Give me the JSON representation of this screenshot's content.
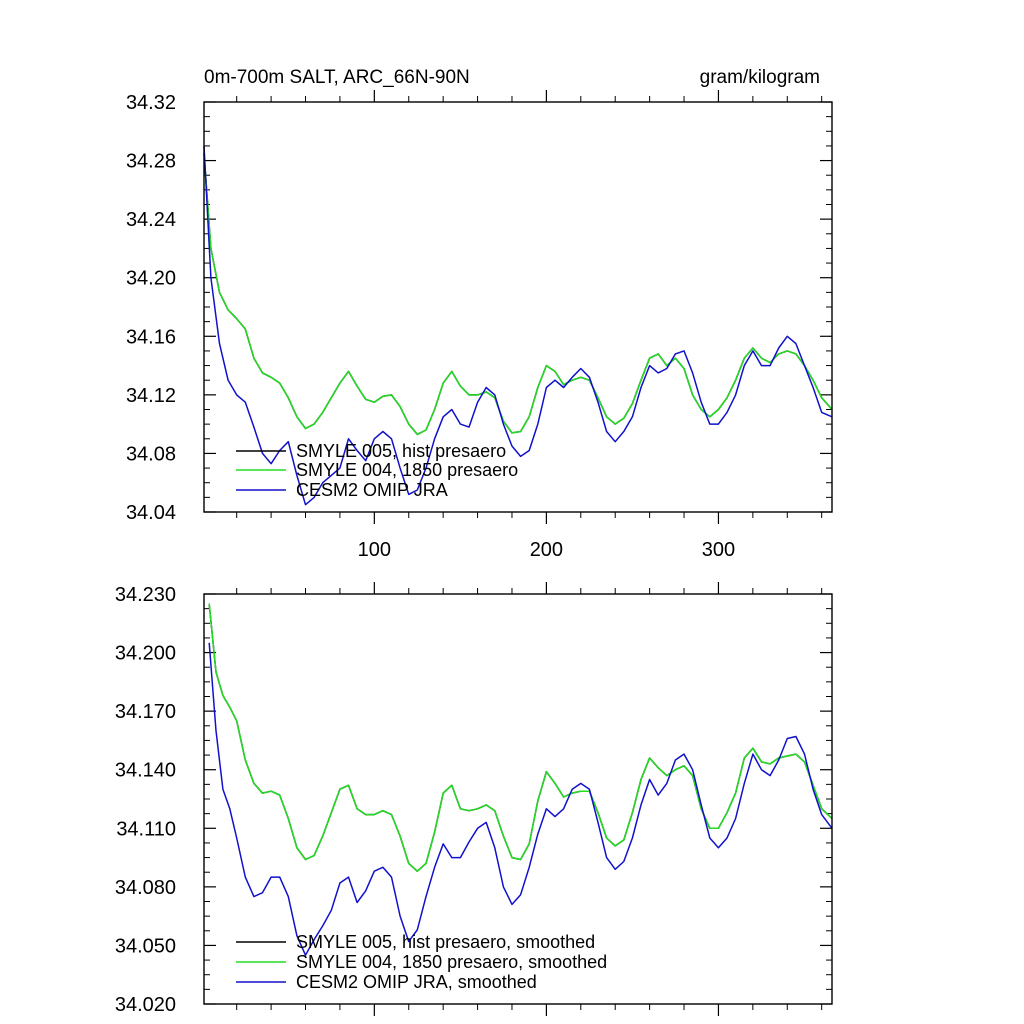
{
  "chart_data": [
    {
      "type": "line",
      "title": "0m-700m SALT, ARC_66N-90N",
      "units": "gram/kilogram",
      "xlim": [
        1,
        366
      ],
      "ylim": [
        34.04,
        34.32
      ],
      "xticks": [
        100,
        200,
        300
      ],
      "yticks": [
        34.04,
        34.08,
        34.12,
        34.16,
        34.2,
        34.24,
        34.28,
        34.32
      ],
      "ytick_labels": [
        "34.04",
        "34.08",
        "34.12",
        "34.16",
        "34.20",
        "34.24",
        "34.28",
        "34.32"
      ],
      "grid": false,
      "legend_position": "bottom-left",
      "x": [
        1,
        5,
        10,
        15,
        20,
        25,
        30,
        35,
        40,
        45,
        50,
        55,
        60,
        65,
        70,
        75,
        80,
        85,
        90,
        95,
        100,
        105,
        110,
        115,
        120,
        125,
        130,
        135,
        140,
        145,
        150,
        155,
        160,
        165,
        170,
        175,
        180,
        185,
        190,
        195,
        200,
        205,
        210,
        215,
        220,
        225,
        230,
        235,
        240,
        245,
        250,
        255,
        260,
        265,
        270,
        275,
        280,
        285,
        290,
        295,
        300,
        305,
        310,
        315,
        320,
        325,
        330,
        335,
        340,
        345,
        350,
        355,
        360,
        366
      ],
      "series": [
        {
          "name": "SMYLE 005, hist presaero",
          "color": "#000000",
          "values": [
            34.285,
            34.22,
            34.19,
            34.178,
            34.172,
            34.165,
            34.145,
            34.135,
            34.132,
            34.128,
            34.118,
            34.105,
            34.097,
            34.1,
            34.108,
            34.118,
            34.128,
            34.136,
            34.126,
            34.117,
            34.115,
            34.119,
            34.12,
            34.112,
            34.1,
            34.093,
            34.096,
            34.11,
            34.128,
            34.136,
            34.126,
            34.12,
            34.12,
            34.122,
            34.118,
            34.102,
            34.094,
            34.095,
            34.105,
            34.125,
            34.14,
            34.136,
            34.127,
            34.13,
            34.132,
            34.13,
            34.118,
            34.105,
            34.1,
            34.104,
            34.114,
            34.13,
            34.145,
            34.148,
            34.14,
            34.145,
            34.138,
            34.12,
            34.11,
            34.105,
            34.11,
            34.118,
            34.13,
            34.145,
            34.152,
            34.145,
            34.142,
            34.148,
            34.15,
            34.148,
            34.14,
            34.13,
            34.118,
            34.11
          ]
        },
        {
          "name": "SMYLE 004, 1850 presaero",
          "color": "#22dd22",
          "values": [
            34.285,
            34.22,
            34.19,
            34.178,
            34.172,
            34.165,
            34.145,
            34.135,
            34.132,
            34.128,
            34.118,
            34.105,
            34.097,
            34.1,
            34.108,
            34.118,
            34.128,
            34.136,
            34.126,
            34.117,
            34.115,
            34.119,
            34.12,
            34.112,
            34.1,
            34.093,
            34.096,
            34.11,
            34.128,
            34.136,
            34.126,
            34.12,
            34.12,
            34.122,
            34.118,
            34.102,
            34.094,
            34.095,
            34.105,
            34.125,
            34.14,
            34.136,
            34.127,
            34.13,
            34.132,
            34.13,
            34.118,
            34.105,
            34.1,
            34.104,
            34.114,
            34.13,
            34.145,
            34.148,
            34.14,
            34.145,
            34.138,
            34.12,
            34.11,
            34.105,
            34.11,
            34.118,
            34.13,
            34.145,
            34.152,
            34.145,
            34.142,
            34.148,
            34.15,
            34.148,
            34.14,
            34.13,
            34.118,
            34.11
          ]
        },
        {
          "name": "CESM2 OMIP JRA",
          "color": "#1111cc",
          "values": [
            34.29,
            34.2,
            34.155,
            34.13,
            34.12,
            34.115,
            34.098,
            34.08,
            34.073,
            34.082,
            34.088,
            34.065,
            34.045,
            34.05,
            34.06,
            34.065,
            34.07,
            34.09,
            34.082,
            34.075,
            34.09,
            34.095,
            34.09,
            34.07,
            34.052,
            34.055,
            34.07,
            34.09,
            34.105,
            34.11,
            34.1,
            34.098,
            34.115,
            34.125,
            34.12,
            34.1,
            34.085,
            34.078,
            34.082,
            34.1,
            34.125,
            34.13,
            34.125,
            34.132,
            34.138,
            34.132,
            34.115,
            34.095,
            34.088,
            34.095,
            34.105,
            34.125,
            34.14,
            34.135,
            34.138,
            34.148,
            34.15,
            34.135,
            34.115,
            34.1,
            34.1,
            34.108,
            34.12,
            34.14,
            34.15,
            34.14,
            34.14,
            34.152,
            34.16,
            34.155,
            34.14,
            34.125,
            34.108,
            34.105
          ]
        }
      ]
    },
    {
      "type": "line",
      "xlim": [
        1,
        366
      ],
      "ylim": [
        34.02,
        34.23
      ],
      "xticks": [
        100,
        200,
        300
      ],
      "yticks": [
        34.02,
        34.05,
        34.08,
        34.11,
        34.14,
        34.17,
        34.2,
        34.23
      ],
      "ytick_labels": [
        "34.020",
        "34.050",
        "34.080",
        "34.110",
        "34.140",
        "34.170",
        "34.200",
        "34.230"
      ],
      "grid": false,
      "legend_position": "bottom-left",
      "x": [
        4,
        8,
        12,
        16,
        20,
        25,
        30,
        35,
        40,
        45,
        50,
        55,
        60,
        65,
        70,
        75,
        80,
        85,
        90,
        95,
        100,
        105,
        110,
        115,
        120,
        125,
        130,
        135,
        140,
        145,
        150,
        155,
        160,
        165,
        170,
        175,
        180,
        185,
        190,
        195,
        200,
        205,
        210,
        215,
        220,
        225,
        230,
        235,
        240,
        245,
        250,
        255,
        260,
        265,
        270,
        275,
        280,
        285,
        290,
        295,
        300,
        305,
        310,
        315,
        320,
        325,
        330,
        335,
        340,
        345,
        350,
        355,
        360,
        366
      ],
      "series": [
        {
          "name": "SMYLE 005, hist presaero, smoothed",
          "color": "#000000",
          "values": [
            34.225,
            34.19,
            34.178,
            34.172,
            34.165,
            34.145,
            34.133,
            34.128,
            34.129,
            34.127,
            34.115,
            34.1,
            34.094,
            34.096,
            34.106,
            34.118,
            34.13,
            34.132,
            34.12,
            34.117,
            34.117,
            34.119,
            34.117,
            34.106,
            34.092,
            34.088,
            34.092,
            34.108,
            34.128,
            34.132,
            34.12,
            34.119,
            34.12,
            34.122,
            34.119,
            34.106,
            34.095,
            34.094,
            34.102,
            34.124,
            34.139,
            34.133,
            34.126,
            34.128,
            34.129,
            34.129,
            34.118,
            34.105,
            34.101,
            34.104,
            34.118,
            34.135,
            34.146,
            34.141,
            34.137,
            34.14,
            34.142,
            34.137,
            34.12,
            34.11,
            34.11,
            34.118,
            34.128,
            34.146,
            34.151,
            34.144,
            34.143,
            34.146,
            34.147,
            34.148,
            34.144,
            34.132,
            34.12,
            34.115
          ]
        },
        {
          "name": "SMYLE 004, 1850 presaero, smoothed",
          "color": "#22dd22",
          "values": [
            34.225,
            34.19,
            34.178,
            34.172,
            34.165,
            34.145,
            34.133,
            34.128,
            34.129,
            34.127,
            34.115,
            34.1,
            34.094,
            34.096,
            34.106,
            34.118,
            34.13,
            34.132,
            34.12,
            34.117,
            34.117,
            34.119,
            34.117,
            34.106,
            34.092,
            34.088,
            34.092,
            34.108,
            34.128,
            34.132,
            34.12,
            34.119,
            34.12,
            34.122,
            34.119,
            34.106,
            34.095,
            34.094,
            34.102,
            34.124,
            34.139,
            34.133,
            34.126,
            34.128,
            34.129,
            34.129,
            34.118,
            34.105,
            34.101,
            34.104,
            34.118,
            34.135,
            34.146,
            34.141,
            34.137,
            34.14,
            34.142,
            34.137,
            34.12,
            34.11,
            34.11,
            34.118,
            34.128,
            34.146,
            34.151,
            34.144,
            34.143,
            34.146,
            34.147,
            34.148,
            34.144,
            34.132,
            34.12,
            34.115
          ]
        },
        {
          "name": "CESM2 OMIP JRA, smoothed",
          "color": "#1111cc",
          "values": [
            34.205,
            34.16,
            34.13,
            34.12,
            34.105,
            34.085,
            34.075,
            34.077,
            34.085,
            34.085,
            34.075,
            34.055,
            34.045,
            34.053,
            34.06,
            34.068,
            34.082,
            34.085,
            34.072,
            34.078,
            34.088,
            34.09,
            34.085,
            34.065,
            34.052,
            34.058,
            34.075,
            34.09,
            34.102,
            34.095,
            34.095,
            34.103,
            34.11,
            34.113,
            34.1,
            34.08,
            34.071,
            34.076,
            34.09,
            34.107,
            34.12,
            34.116,
            34.12,
            34.13,
            34.133,
            34.13,
            34.113,
            34.095,
            34.089,
            34.093,
            34.105,
            34.122,
            34.135,
            34.127,
            34.133,
            34.145,
            34.148,
            34.14,
            34.122,
            34.105,
            34.1,
            34.105,
            34.115,
            34.133,
            34.148,
            34.14,
            34.137,
            34.145,
            34.156,
            34.157,
            34.148,
            34.13,
            34.117,
            34.11
          ]
        }
      ]
    }
  ]
}
